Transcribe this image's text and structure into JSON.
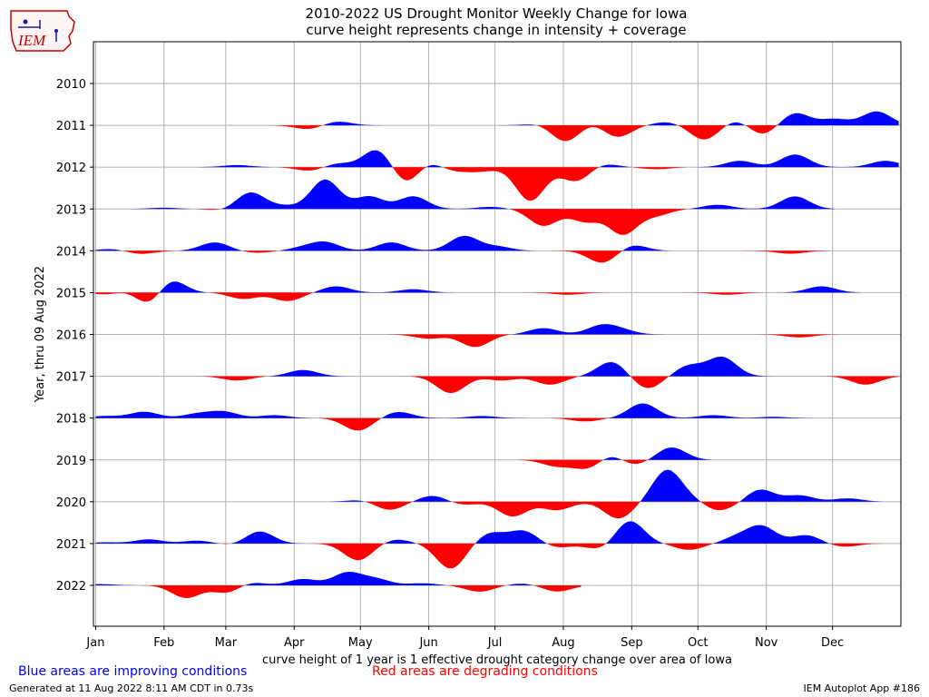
{
  "logo": {
    "text": "IEM",
    "color": "#cc0000"
  },
  "chart_data": {
    "type": "area",
    "title": "2010-2022 US Drought Monitor Weekly Change for Iowa",
    "subtitle": "curve height represents change in intensity + coverage",
    "xlabel": "curve height of 1 year is 1 effective drought category change over area of Iowa",
    "ylabel": "Year, thru 09 Aug 2022",
    "x_ticks": [
      {
        "label": "Jan",
        "doy": 1
      },
      {
        "label": "Feb",
        "doy": 32
      },
      {
        "label": "Mar",
        "doy": 60
      },
      {
        "label": "Apr",
        "doy": 91
      },
      {
        "label": "May",
        "doy": 121
      },
      {
        "label": "Jun",
        "doy": 152
      },
      {
        "label": "Jul",
        "doy": 182
      },
      {
        "label": "Aug",
        "doy": 213
      },
      {
        "label": "Sep",
        "doy": 244
      },
      {
        "label": "Oct",
        "doy": 274
      },
      {
        "label": "Nov",
        "doy": 305
      },
      {
        "label": "Dec",
        "doy": 335
      }
    ],
    "xlim": [
      0,
      366
    ],
    "years": [
      2010,
      2011,
      2012,
      2013,
      2014,
      2015,
      2016,
      2017,
      2018,
      2019,
      2020,
      2021,
      2022
    ],
    "grid": true,
    "colors": {
      "improving": "#0000ff",
      "degrading": "#ff0000"
    },
    "series": [
      {
        "year": 2010,
        "bumps": []
      },
      {
        "year": 2011,
        "bumps": [
          {
            "doy": 98,
            "v": -0.1
          },
          {
            "doy": 110,
            "v": 0.1
          },
          {
            "doy": 203,
            "v": 0.05
          },
          {
            "doy": 214,
            "v": -0.4
          },
          {
            "doy": 227,
            "v": 0.1
          },
          {
            "doy": 237,
            "v": -0.3
          },
          {
            "doy": 260,
            "v": 0.08
          },
          {
            "doy": 277,
            "v": -0.35
          },
          {
            "doy": 292,
            "v": 0.15
          },
          {
            "doy": 303,
            "v": -0.25
          },
          {
            "doy": 318,
            "v": 0.3
          },
          {
            "doy": 336,
            "v": 0.15
          },
          {
            "doy": 355,
            "v": 0.33
          }
        ]
      },
      {
        "year": 2012,
        "bumps": [
          {
            "doy": 65,
            "v": 0.05
          },
          {
            "doy": 99,
            "v": -0.1
          },
          {
            "doy": 110,
            "v": 0.1
          },
          {
            "doy": 129,
            "v": 0.45
          },
          {
            "doy": 142,
            "v": -0.45
          },
          {
            "doy": 151,
            "v": 0.2
          },
          {
            "doy": 162,
            "v": -0.1
          },
          {
            "doy": 175,
            "v": -0.1
          },
          {
            "doy": 198,
            "v": -0.8
          },
          {
            "doy": 219,
            "v": -0.35
          },
          {
            "doy": 230,
            "v": 0.1
          },
          {
            "doy": 255,
            "v": -0.05
          },
          {
            "doy": 293,
            "v": 0.15
          },
          {
            "doy": 318,
            "v": 0.3
          },
          {
            "doy": 359,
            "v": 0.15
          }
        ]
      },
      {
        "year": 2013,
        "bumps": [
          {
            "doy": 32,
            "v": 0.03
          },
          {
            "doy": 60,
            "v": -0.05
          },
          {
            "doy": 71,
            "v": 0.4
          },
          {
            "doy": 86,
            "v": 0.07
          },
          {
            "doy": 105,
            "v": 0.7
          },
          {
            "doy": 125,
            "v": 0.3
          },
          {
            "doy": 145,
            "v": 0.3
          },
          {
            "doy": 180,
            "v": 0.05
          },
          {
            "doy": 204,
            "v": -0.4
          },
          {
            "doy": 223,
            "v": -0.3
          },
          {
            "doy": 240,
            "v": -0.6
          },
          {
            "doy": 255,
            "v": -0.15
          },
          {
            "doy": 283,
            "v": 0.1
          },
          {
            "doy": 318,
            "v": 0.3
          }
        ]
      },
      {
        "year": 2014,
        "bumps": [
          {
            "doy": 9,
            "v": 0.05
          },
          {
            "doy": 21,
            "v": -0.08
          },
          {
            "doy": 55,
            "v": 0.2
          },
          {
            "doy": 74,
            "v": -0.05
          },
          {
            "doy": 95,
            "v": 0.07
          },
          {
            "doy": 105,
            "v": 0.2
          },
          {
            "doy": 135,
            "v": 0.2
          },
          {
            "doy": 168,
            "v": 0.35
          },
          {
            "doy": 183,
            "v": 0.1
          },
          {
            "doy": 231,
            "v": -0.3
          },
          {
            "doy": 244,
            "v": 0.15
          },
          {
            "doy": 316,
            "v": -0.07
          }
        ]
      },
      {
        "year": 2015,
        "bumps": [
          {
            "doy": 8,
            "v": -0.07
          },
          {
            "doy": 16,
            "v": 0.1
          },
          {
            "doy": 26,
            "v": -0.4
          },
          {
            "doy": 34,
            "v": 0.4
          },
          {
            "doy": 68,
            "v": -0.15
          },
          {
            "doy": 88,
            "v": -0.2
          },
          {
            "doy": 110,
            "v": 0.15
          },
          {
            "doy": 145,
            "v": 0.08
          },
          {
            "doy": 215,
            "v": -0.05
          },
          {
            "doy": 287,
            "v": -0.05
          },
          {
            "doy": 330,
            "v": 0.15
          }
        ]
      },
      {
        "year": 2016,
        "bumps": [
          {
            "doy": 152,
            "v": -0.1
          },
          {
            "doy": 173,
            "v": -0.3
          },
          {
            "doy": 204,
            "v": 0.15
          },
          {
            "doy": 230,
            "v": 0.2
          },
          {
            "doy": 239,
            "v": 0.1
          },
          {
            "doy": 320,
            "v": -0.07
          }
        ]
      },
      {
        "year": 2017,
        "bumps": [
          {
            "doy": 65,
            "v": -0.1
          },
          {
            "doy": 95,
            "v": 0.15
          },
          {
            "doy": 162,
            "v": -0.4
          },
          {
            "doy": 185,
            "v": -0.1
          },
          {
            "doy": 207,
            "v": -0.2
          },
          {
            "doy": 235,
            "v": 0.35
          },
          {
            "doy": 251,
            "v": -0.3
          },
          {
            "doy": 270,
            "v": 0.25
          },
          {
            "doy": 285,
            "v": 0.45
          },
          {
            "doy": 350,
            "v": -0.2
          }
        ]
      },
      {
        "year": 2018,
        "bumps": [
          {
            "doy": 5,
            "v": 0.05
          },
          {
            "doy": 23,
            "v": 0.15
          },
          {
            "doy": 47,
            "v": 0.1
          },
          {
            "doy": 59,
            "v": 0.15
          },
          {
            "doy": 82,
            "v": 0.07
          },
          {
            "doy": 120,
            "v": -0.3
          },
          {
            "doy": 138,
            "v": 0.15
          },
          {
            "doy": 176,
            "v": 0.05
          },
          {
            "doy": 223,
            "v": -0.08
          },
          {
            "doy": 249,
            "v": 0.35
          },
          {
            "doy": 281,
            "v": 0.07
          },
          {
            "doy": 308,
            "v": 0.03
          }
        ]
      },
      {
        "year": 2019,
        "bumps": [
          {
            "doy": 210,
            "v": -0.15
          },
          {
            "doy": 225,
            "v": -0.25
          },
          {
            "doy": 234,
            "v": 0.2
          },
          {
            "doy": 244,
            "v": -0.15
          },
          {
            "doy": 262,
            "v": 0.3
          }
        ]
      },
      {
        "year": 2020,
        "bumps": [
          {
            "doy": 122,
            "v": 0.05
          },
          {
            "doy": 134,
            "v": -0.2
          },
          {
            "doy": 154,
            "v": 0.15
          },
          {
            "doy": 167,
            "v": -0.08
          },
          {
            "doy": 190,
            "v": -0.35
          },
          {
            "doy": 210,
            "v": -0.2
          },
          {
            "doy": 238,
            "v": -0.4
          },
          {
            "doy": 260,
            "v": 0.75
          },
          {
            "doy": 273,
            "v": 0.1
          },
          {
            "doy": 281,
            "v": -0.2
          },
          {
            "doy": 290,
            "v": -0.08
          },
          {
            "doy": 302,
            "v": 0.3
          },
          {
            "doy": 320,
            "v": 0.15
          },
          {
            "doy": 342,
            "v": 0.08
          }
        ]
      },
      {
        "year": 2021,
        "bumps": [
          {
            "doy": 5,
            "v": 0.03
          },
          {
            "doy": 25,
            "v": 0.1
          },
          {
            "doy": 47,
            "v": 0.07
          },
          {
            "doy": 65,
            "v": -0.05
          },
          {
            "doy": 75,
            "v": 0.3
          },
          {
            "doy": 120,
            "v": -0.4
          },
          {
            "doy": 137,
            "v": 0.1
          },
          {
            "doy": 162,
            "v": -0.6
          },
          {
            "doy": 180,
            "v": 0.25
          },
          {
            "doy": 195,
            "v": 0.3
          },
          {
            "doy": 210,
            "v": -0.1
          },
          {
            "doy": 230,
            "v": -0.15
          },
          {
            "doy": 243,
            "v": 0.55
          },
          {
            "doy": 270,
            "v": -0.15
          },
          {
            "doy": 292,
            "v": 0.15
          },
          {
            "doy": 303,
            "v": 0.4
          },
          {
            "doy": 323,
            "v": 0.2
          },
          {
            "doy": 340,
            "v": -0.08
          }
        ]
      },
      {
        "year": 2022,
        "bumps": [
          {
            "doy": 3,
            "v": 0.03
          },
          {
            "doy": 42,
            "v": -0.3
          },
          {
            "doy": 61,
            "v": -0.2
          },
          {
            "doy": 70,
            "v": 0.1
          },
          {
            "doy": 95,
            "v": 0.15
          },
          {
            "doy": 115,
            "v": 0.3
          },
          {
            "doy": 128,
            "v": 0.15
          },
          {
            "doy": 149,
            "v": 0.05
          },
          {
            "doy": 175,
            "v": -0.15
          },
          {
            "doy": 195,
            "v": 0.05
          },
          {
            "doy": 210,
            "v": -0.15
          }
        ],
        "end_doy": 221
      }
    ]
  },
  "footer": {
    "blue_note": "Blue areas are improving conditions",
    "red_note": "Red areas are degrading conditions",
    "generated": "Generated at 11 Aug 2022 8:11 AM CDT in 0.73s",
    "app": "IEM Autoplot App #186"
  }
}
